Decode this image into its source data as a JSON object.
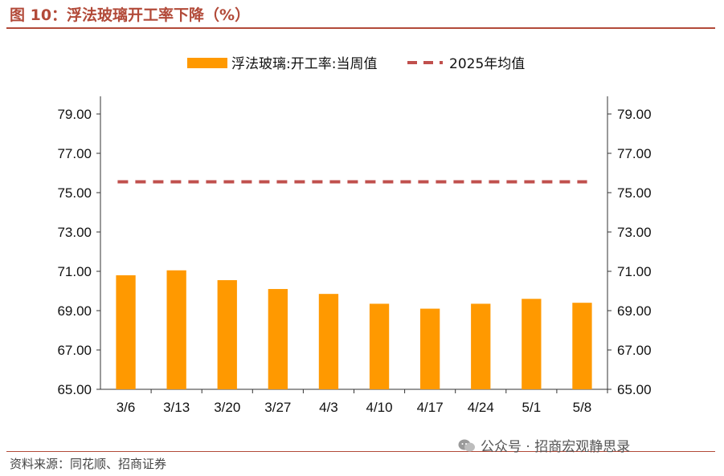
{
  "header": {
    "title": "图 10：浮法玻璃开工率下降（%）"
  },
  "footer": {
    "source": "资料来源：同花顺、招商证券",
    "watermark": "公众号 · 招商宏观静思录"
  },
  "colors": {
    "bar": "#ff9900",
    "avg_line": "#c0504d",
    "accent": "#b24a39"
  },
  "chart_data": {
    "type": "bar",
    "categories": [
      "3/6",
      "3/13",
      "3/20",
      "3/27",
      "4/3",
      "4/10",
      "4/17",
      "4/24",
      "5/1",
      "5/8"
    ],
    "series": [
      {
        "name": "浮法玻璃:开工率:当周值",
        "kind": "bar",
        "values": [
          70.8,
          71.05,
          70.55,
          70.1,
          69.85,
          69.35,
          69.1,
          69.35,
          69.6,
          69.4
        ]
      },
      {
        "name": "2025年均值",
        "kind": "dashed-line",
        "value": 75.55
      }
    ],
    "ylim": [
      65.0,
      79.0
    ],
    "yticks": [
      "79.00",
      "77.00",
      "75.00",
      "73.00",
      "71.00",
      "69.00",
      "67.00",
      "65.00"
    ],
    "legend_position": "top",
    "grid": false
  }
}
